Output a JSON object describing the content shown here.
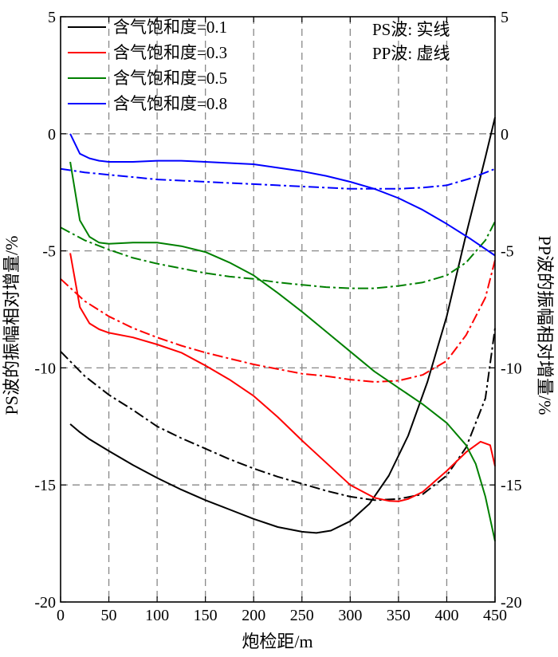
{
  "chart_data": {
    "type": "line",
    "xlabel": "炮检距/m",
    "ylabel_left": "PS波的振幅相对增量/%",
    "ylabel_right": "PP波的振幅相对增量/%",
    "xlim": [
      0,
      450
    ],
    "ylim": [
      -20,
      5
    ],
    "xticks": [
      0,
      50,
      100,
      150,
      200,
      250,
      300,
      350,
      400,
      450
    ],
    "yticks": [
      -20,
      -15,
      -10,
      -5,
      0,
      5
    ],
    "xtick_labels": [
      "0",
      "50",
      "100",
      "150",
      "200",
      "250",
      "300",
      "350",
      "400",
      "450"
    ],
    "ytick_labels": [
      "-20",
      "-15",
      "-10",
      "-5",
      "0",
      "5"
    ],
    "grid": true,
    "legend_position": "top-left",
    "notes": [
      "PS波: 实线",
      "PP波: 虚线"
    ],
    "series": [
      {
        "name": "含气饱和度=0.1",
        "color": "#000000",
        "ps": {
          "x": [
            10,
            20,
            30,
            50,
            75,
            100,
            125,
            150,
            175,
            200,
            225,
            250,
            265,
            280,
            300,
            320,
            340,
            360,
            380,
            400,
            420,
            440,
            450
          ],
          "y": [
            -12.4,
            -12.75,
            -13.05,
            -13.55,
            -14.15,
            -14.7,
            -15.2,
            -15.65,
            -16.05,
            -16.45,
            -16.8,
            -17.0,
            -17.05,
            -16.95,
            -16.55,
            -15.8,
            -14.6,
            -12.9,
            -10.6,
            -7.8,
            -4.3,
            -1.0,
            0.7
          ]
        },
        "pp": {
          "x": [
            0,
            25,
            50,
            75,
            100,
            125,
            150,
            175,
            200,
            225,
            250,
            275,
            300,
            325,
            350,
            375,
            400,
            420,
            440,
            450
          ],
          "y": [
            -9.3,
            -10.35,
            -11.15,
            -11.8,
            -12.5,
            -13.0,
            -13.45,
            -13.9,
            -14.3,
            -14.65,
            -14.95,
            -15.25,
            -15.5,
            -15.65,
            -15.6,
            -15.4,
            -14.6,
            -13.4,
            -11.3,
            -8.3
          ]
        }
      },
      {
        "name": "含气饱和度=0.3",
        "color": "#ff0000",
        "ps": {
          "x": [
            10,
            20,
            30,
            40,
            50,
            75,
            100,
            125,
            150,
            175,
            200,
            225,
            250,
            275,
            300,
            325,
            340,
            350,
            360,
            375,
            400,
            420,
            435,
            445,
            450
          ],
          "y": [
            -5.1,
            -7.4,
            -8.1,
            -8.35,
            -8.5,
            -8.7,
            -9.0,
            -9.35,
            -9.9,
            -10.5,
            -11.2,
            -12.1,
            -13.1,
            -14.05,
            -15.0,
            -15.55,
            -15.68,
            -15.7,
            -15.6,
            -15.3,
            -14.4,
            -13.6,
            -13.15,
            -13.3,
            -14.2
          ]
        },
        "pp": {
          "x": [
            0,
            25,
            50,
            75,
            100,
            125,
            150,
            175,
            200,
            225,
            250,
            275,
            300,
            325,
            350,
            375,
            400,
            420,
            440,
            450
          ],
          "y": [
            -6.2,
            -7.15,
            -7.8,
            -8.3,
            -8.7,
            -9.05,
            -9.35,
            -9.6,
            -9.85,
            -10.05,
            -10.25,
            -10.35,
            -10.5,
            -10.6,
            -10.55,
            -10.3,
            -9.7,
            -8.6,
            -7.0,
            -5.4
          ]
        }
      },
      {
        "name": "含气饱和度=0.5",
        "color": "#008000",
        "ps": {
          "x": [
            10,
            20,
            30,
            40,
            50,
            75,
            100,
            125,
            150,
            175,
            200,
            225,
            250,
            275,
            300,
            325,
            350,
            375,
            400,
            420,
            430,
            440,
            450
          ],
          "y": [
            -1.2,
            -3.7,
            -4.4,
            -4.65,
            -4.7,
            -4.65,
            -4.65,
            -4.8,
            -5.05,
            -5.5,
            -6.05,
            -6.8,
            -7.6,
            -8.45,
            -9.3,
            -10.15,
            -10.85,
            -11.55,
            -12.35,
            -13.3,
            -14.1,
            -15.5,
            -17.4
          ]
        },
        "pp": {
          "x": [
            0,
            25,
            50,
            75,
            100,
            125,
            150,
            175,
            200,
            225,
            250,
            275,
            300,
            325,
            350,
            375,
            400,
            420,
            440,
            450
          ],
          "y": [
            -4.0,
            -4.55,
            -4.95,
            -5.3,
            -5.55,
            -5.75,
            -5.95,
            -6.1,
            -6.2,
            -6.35,
            -6.45,
            -6.55,
            -6.6,
            -6.6,
            -6.5,
            -6.35,
            -6.05,
            -5.5,
            -4.55,
            -3.75
          ]
        }
      },
      {
        "name": "含气饱和度=0.8",
        "color": "#0000ff",
        "ps": {
          "x": [
            10,
            20,
            30,
            40,
            50,
            75,
            100,
            125,
            150,
            175,
            200,
            225,
            250,
            275,
            300,
            325,
            350,
            375,
            400,
            425,
            450
          ],
          "y": [
            0.0,
            -0.85,
            -1.05,
            -1.15,
            -1.2,
            -1.2,
            -1.15,
            -1.15,
            -1.2,
            -1.25,
            -1.3,
            -1.45,
            -1.6,
            -1.8,
            -2.05,
            -2.35,
            -2.75,
            -3.25,
            -3.85,
            -4.5,
            -5.2
          ]
        },
        "pp": {
          "x": [
            0,
            25,
            50,
            75,
            100,
            125,
            150,
            175,
            200,
            225,
            250,
            275,
            300,
            325,
            350,
            375,
            400,
            425,
            450
          ],
          "y": [
            -1.5,
            -1.65,
            -1.75,
            -1.85,
            -1.95,
            -2.0,
            -2.05,
            -2.1,
            -2.15,
            -2.2,
            -2.25,
            -2.3,
            -2.35,
            -2.35,
            -2.35,
            -2.3,
            -2.2,
            -1.9,
            -1.5
          ]
        }
      }
    ]
  }
}
